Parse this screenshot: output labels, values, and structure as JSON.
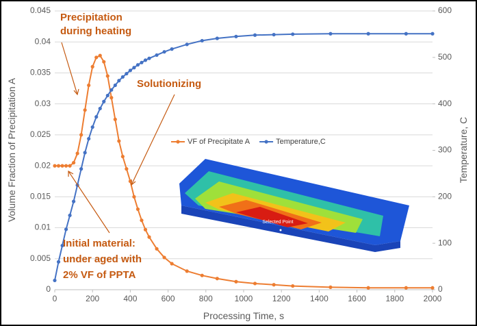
{
  "chart_data": {
    "type": "line",
    "x_label": "Processing Time, s",
    "y_label": "Volume Fraction of Precipitation A",
    "y2_label": "Temperature, C",
    "xlim": [
      0,
      2000
    ],
    "xticks": [
      0,
      200,
      400,
      600,
      800,
      1000,
      1200,
      1400,
      1600,
      1800,
      2000
    ],
    "ylim": [
      0,
      0.045
    ],
    "yticks": [
      0,
      0.005,
      0.01,
      0.015,
      0.02,
      0.025,
      0.03,
      0.035,
      0.04,
      0.045
    ],
    "y2lim": [
      0,
      600
    ],
    "y2ticks": [
      0,
      100,
      200,
      300,
      400,
      500,
      600
    ],
    "grid": true,
    "legend": "center",
    "x": [
      0,
      20,
      40,
      60,
      80,
      100,
      120,
      140,
      160,
      180,
      200,
      220,
      240,
      260,
      280,
      300,
      320,
      340,
      360,
      380,
      400,
      420,
      440,
      460,
      480,
      500,
      540,
      580,
      620,
      700,
      780,
      860,
      960,
      1060,
      1160,
      1260,
      1460,
      1660,
      1860,
      2000
    ],
    "series": [
      {
        "name": "VF of Precipitate A",
        "color": "#ed7d31",
        "values": [
          0.02,
          0.02,
          0.02,
          0.02,
          0.02,
          0.0205,
          0.022,
          0.025,
          0.029,
          0.033,
          0.036,
          0.0375,
          0.0378,
          0.0368,
          0.0345,
          0.031,
          0.0275,
          0.024,
          0.0215,
          0.0195,
          0.0175,
          0.015,
          0.013,
          0.0112,
          0.0097,
          0.0085,
          0.0066,
          0.0052,
          0.0042,
          0.003,
          0.0023,
          0.0018,
          0.0013,
          0.001,
          0.0008,
          0.0006,
          0.0004,
          0.0003,
          0.0003,
          0.0003
        ]
      },
      {
        "name": "Temperature,C",
        "color": "#4472c4",
        "axis": "y2",
        "values": [
          20,
          60,
          95,
          130,
          160,
          190,
          225,
          260,
          295,
          325,
          350,
          372,
          390,
          405,
          418,
          430,
          440,
          450,
          458,
          465,
          472,
          478,
          484,
          489,
          494,
          498,
          505,
          512,
          518,
          528,
          536,
          541,
          545,
          548,
          549,
          550,
          551,
          551,
          551,
          551
        ]
      }
    ],
    "annotations": [
      "Precipitation",
      "during heating",
      "Solutionizing",
      "Initial material:",
      "under aged with",
      "2% VF of PPTA"
    ],
    "inset_label": "Selected Point"
  }
}
